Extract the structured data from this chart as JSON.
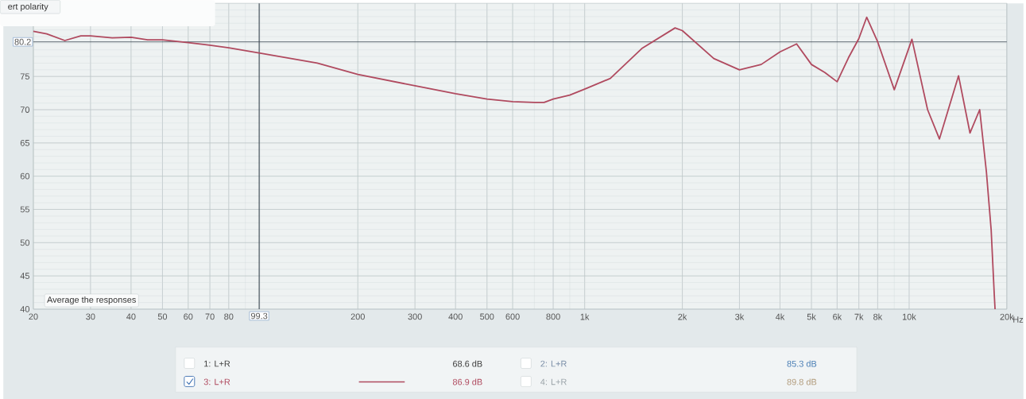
{
  "chart_data": {
    "type": "line",
    "x": [
      20,
      22,
      25,
      28,
      30,
      35,
      40,
      45,
      50,
      60,
      70,
      80,
      100,
      150,
      200,
      300,
      400,
      500,
      600,
      700,
      750,
      800,
      900,
      1000,
      1200,
      1500,
      1900,
      2000,
      2500,
      3000,
      3500,
      4000,
      4500,
      5000,
      5500,
      6000,
      6500,
      7000,
      7400,
      8000,
      9000,
      10200,
      11400,
      12400,
      14200,
      15400,
      16500,
      17300,
      17900,
      18300,
      18400
    ],
    "series": [
      {
        "name": "3: L+R",
        "color": "#b04a5f",
        "values": [
          81.8,
          81.4,
          80.4,
          81.1,
          81.1,
          80.8,
          80.9,
          80.5,
          80.5,
          80.1,
          79.7,
          79.3,
          78.5,
          77.0,
          75.3,
          73.6,
          72.4,
          71.6,
          71.2,
          71.1,
          71.1,
          71.6,
          72.2,
          73.1,
          74.7,
          79.2,
          82.3,
          81.9,
          77.7,
          76.0,
          76.8,
          78.7,
          79.9,
          76.8,
          75.6,
          74.2,
          77.8,
          80.7,
          83.9,
          80.2,
          73.0,
          80.6,
          70.0,
          65.6,
          75.1,
          66.5,
          70.0,
          60.7,
          51.9,
          42.2,
          40.0
        ]
      }
    ],
    "xlim": [
      20,
      20000
    ],
    "ylim": [
      40,
      86
    ],
    "xticks": [
      20,
      30,
      40,
      50,
      60,
      70,
      80,
      200,
      300,
      400,
      500,
      600,
      800,
      {
        "value": 1000,
        "label": "1k"
      },
      {
        "value": 2000,
        "label": "2k"
      },
      {
        "value": 3000,
        "label": "3k"
      },
      {
        "value": 4000,
        "label": "4k"
      },
      {
        "value": 5000,
        "label": "5k"
      },
      {
        "value": 6000,
        "label": "6k"
      },
      {
        "value": 7000,
        "label": "7k"
      },
      {
        "value": 8000,
        "label": "8k"
      },
      {
        "value": 10000,
        "label": "10k"
      },
      {
        "value": 20000,
        "label": "20k"
      }
    ],
    "xlabel": "Hz",
    "yticks": [
      40,
      45,
      50,
      55,
      60,
      65,
      70,
      75
    ],
    "log": "x",
    "grid": true,
    "legend": "bottom",
    "ref_lines": [
      {
        "axis": "y",
        "value": 80.2,
        "label": "80.2",
        "color": "#3a4650"
      },
      {
        "axis": "x",
        "value": 99.3,
        "label": "99.3",
        "color": "#3a4650"
      }
    ],
    "annotations": [
      "ert polarity",
      "Average the responses",
      "1: L+R",
      "68.6 dB",
      "2: L+R",
      "85.3 dB",
      "86.9 dB",
      "4: L+R",
      "89.8 dB"
    ]
  }
}
